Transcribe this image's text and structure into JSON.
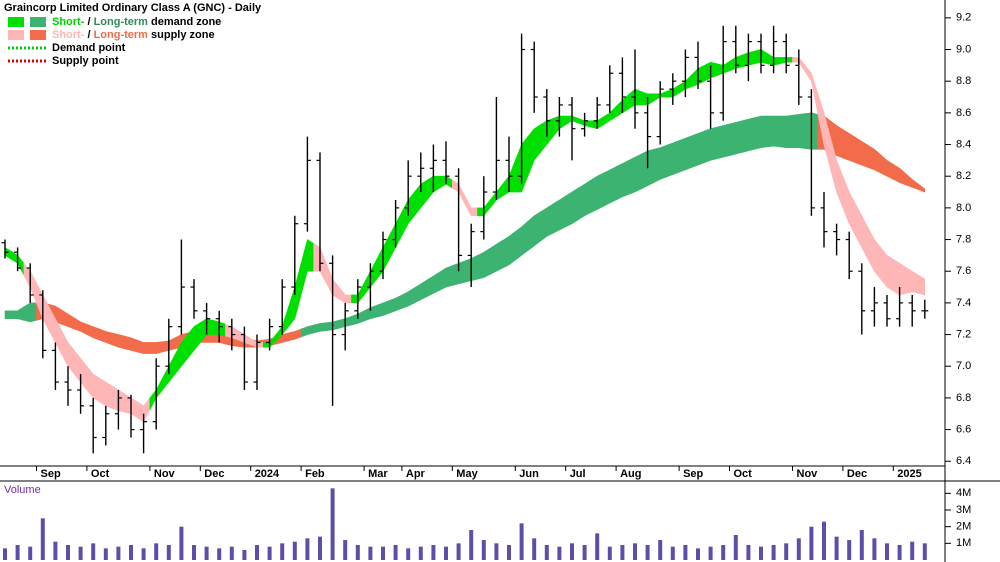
{
  "chart_data": [
    {
      "type": "ohlc",
      "title": "Graincorp Limited Ordinary Class A (GNC) - Daily",
      "categories": [
        null,
        null,
        null,
        "Sep",
        null,
        null,
        null,
        "Oct",
        null,
        null,
        null,
        null,
        "Nov",
        null,
        null,
        null,
        "Dec",
        null,
        null,
        null,
        "2024",
        null,
        null,
        null,
        "Feb",
        null,
        null,
        null,
        null,
        "Mar",
        null,
        null,
        "Apr",
        null,
        null,
        null,
        "May",
        null,
        null,
        null,
        null,
        "Jun",
        null,
        null,
        null,
        "Jul",
        null,
        null,
        null,
        "Aug",
        null,
        null,
        null,
        null,
        "Sep",
        null,
        null,
        null,
        "Oct",
        null,
        null,
        null,
        null,
        "Nov",
        null,
        null,
        null,
        "Dec",
        null,
        null,
        null,
        "2025",
        null,
        null
      ],
      "open": [
        7.78,
        7.72,
        7.62,
        7.45,
        7.1,
        6.9,
        6.85,
        6.75,
        6.55,
        6.7,
        6.8,
        6.6,
        6.65,
        7.0,
        7.25,
        7.5,
        7.35,
        7.3,
        7.25,
        7.2,
        6.9,
        7.15,
        7.25,
        7.5,
        7.9,
        8.3,
        7.65,
        7.2,
        7.35,
        7.5,
        7.6,
        7.8,
        8.0,
        8.2,
        8.25,
        8.3,
        8.2,
        7.7,
        7.85,
        8.1,
        8.3,
        8.2,
        9.0,
        8.7,
        8.55,
        8.65,
        8.5,
        8.55,
        8.65,
        8.85,
        8.7,
        8.6,
        8.45,
        8.75,
        8.8,
        8.95,
        8.8,
        8.6,
        9.05,
        8.9,
        9.05,
        8.9,
        9.05,
        8.9,
        8.7,
        8.0,
        7.85,
        7.8,
        7.6,
        7.35,
        7.4,
        7.3,
        7.4,
        7.35
      ],
      "high": [
        7.8,
        7.75,
        7.65,
        7.48,
        7.15,
        7.0,
        6.95,
        6.8,
        6.75,
        6.85,
        6.82,
        6.7,
        7.05,
        7.3,
        7.8,
        7.55,
        7.4,
        7.35,
        7.3,
        7.25,
        7.2,
        7.3,
        7.55,
        7.95,
        8.45,
        8.35,
        7.7,
        7.4,
        7.55,
        7.65,
        7.85,
        8.05,
        8.3,
        8.35,
        8.4,
        8.42,
        8.25,
        7.9,
        8.2,
        8.7,
        8.45,
        9.1,
        9.05,
        8.75,
        8.7,
        8.7,
        8.6,
        8.7,
        8.9,
        8.95,
        9.0,
        8.7,
        8.8,
        8.85,
        9.0,
        9.05,
        8.9,
        9.15,
        9.15,
        9.1,
        9.1,
        9.15,
        9.1,
        9.0,
        8.75,
        8.1,
        7.9,
        7.85,
        7.65,
        7.5,
        7.45,
        7.5,
        7.45,
        7.42
      ],
      "low": [
        7.68,
        7.6,
        7.4,
        7.05,
        6.85,
        6.75,
        6.7,
        6.45,
        6.5,
        6.6,
        6.55,
        6.45,
        6.6,
        6.95,
        7.2,
        7.3,
        7.2,
        7.15,
        7.1,
        6.85,
        6.85,
        7.1,
        7.2,
        7.45,
        7.85,
        7.6,
        6.75,
        7.1,
        7.3,
        7.35,
        7.55,
        7.75,
        7.95,
        8.1,
        8.1,
        8.15,
        7.6,
        7.5,
        7.8,
        8.05,
        8.1,
        8.15,
        8.6,
        8.45,
        8.45,
        8.3,
        8.45,
        8.5,
        8.6,
        8.6,
        8.5,
        8.25,
        8.4,
        8.65,
        8.7,
        8.75,
        8.5,
        8.55,
        8.85,
        8.8,
        8.85,
        8.85,
        8.85,
        8.65,
        7.95,
        7.75,
        7.7,
        7.55,
        7.2,
        7.25,
        7.25,
        7.25,
        7.25,
        7.3
      ],
      "close": [
        7.72,
        7.62,
        7.45,
        7.1,
        6.9,
        6.85,
        6.75,
        6.55,
        6.7,
        6.8,
        6.6,
        6.65,
        7.0,
        7.25,
        7.5,
        7.35,
        7.3,
        7.25,
        7.2,
        6.9,
        7.15,
        7.25,
        7.5,
        7.9,
        8.3,
        7.65,
        7.2,
        7.35,
        7.5,
        7.6,
        7.8,
        8.0,
        8.2,
        8.25,
        8.3,
        8.2,
        7.7,
        7.85,
        8.1,
        8.3,
        8.2,
        9.0,
        8.7,
        8.55,
        8.65,
        8.5,
        8.55,
        8.65,
        8.85,
        8.7,
        8.6,
        8.45,
        8.75,
        8.8,
        8.95,
        8.8,
        8.6,
        9.05,
        8.9,
        9.05,
        8.9,
        9.05,
        8.9,
        8.7,
        8.0,
        7.85,
        7.8,
        7.6,
        7.35,
        7.4,
        7.3,
        7.4,
        7.35,
        7.35
      ],
      "color": "#000000",
      "ylim": [
        6.37,
        9.3
      ],
      "yticks": [
        6.4,
        6.6,
        6.8,
        {
          "value": 7,
          "label": "7.0"
        },
        7.2,
        7.4,
        7.6,
        7.8,
        {
          "value": 8,
          "label": "8.0"
        },
        8.2,
        8.4,
        8.6,
        8.8,
        {
          "value": 9,
          "label": "9.0"
        },
        9.2
      ],
      "zones": [
        {
          "upper": [
            7.35,
            7.35,
            7.4,
            7.4,
            7.38,
            7.33,
            7.28,
            7.25,
            7.22,
            7.2,
            7.18,
            7.15,
            7.15,
            7.16,
            7.2,
            7.22,
            7.23,
            7.22,
            7.2,
            7.18,
            7.16,
            7.17,
            7.2,
            7.22,
            7.25,
            7.27,
            7.28,
            7.3,
            7.33,
            7.37,
            7.4,
            7.43,
            7.47,
            7.52,
            7.57,
            7.62,
            7.65,
            7.68,
            7.72,
            7.77,
            7.82,
            7.88,
            7.95,
            8.0,
            8.05,
            8.1,
            8.15,
            8.2,
            8.24,
            8.28,
            8.32,
            8.36,
            8.38,
            8.41,
            8.44,
            8.47,
            8.5,
            8.52,
            8.54,
            8.56,
            8.58,
            8.58,
            8.58,
            8.59,
            8.6,
            8.58,
            8.52,
            8.47,
            8.42,
            8.37,
            8.3,
            8.25,
            8.18,
            8.12
          ],
          "lower": [
            7.3,
            7.3,
            7.28,
            7.3,
            7.28,
            7.25,
            7.22,
            7.18,
            7.15,
            7.12,
            7.1,
            7.08,
            7.08,
            7.1,
            7.12,
            7.15,
            7.15,
            7.15,
            7.13,
            7.12,
            7.12,
            7.13,
            7.15,
            7.17,
            7.2,
            7.22,
            7.23,
            7.25,
            7.27,
            7.3,
            7.32,
            7.35,
            7.38,
            7.42,
            7.46,
            7.5,
            7.52,
            7.54,
            7.56,
            7.6,
            7.64,
            7.7,
            7.76,
            7.82,
            7.86,
            7.9,
            7.95,
            7.99,
            8.03,
            8.07,
            8.1,
            8.14,
            8.18,
            8.21,
            8.24,
            8.27,
            8.3,
            8.32,
            8.34,
            8.36,
            8.38,
            8.39,
            8.38,
            8.38,
            8.37,
            8.37,
            8.33,
            8.3,
            8.27,
            8.24,
            8.2,
            8.16,
            8.13,
            8.1
          ],
          "colors": [
            "#3cb371",
            "#3cb371",
            "#3cb371",
            "#f26b4a",
            "#f26b4a",
            "#f26b4a",
            "#f26b4a",
            "#f26b4a",
            "#f26b4a",
            "#f26b4a",
            "#f26b4a",
            "#f26b4a",
            "#f26b4a",
            "#f26b4a",
            "#f26b4a",
            "#f26b4a",
            "#f26b4a",
            "#f26b4a",
            "#f26b4a",
            "#f26b4a",
            "#f26b4a",
            "#f26b4a",
            "#f26b4a",
            "#f26b4a",
            "#3cb371",
            "#3cb371",
            "#3cb371",
            "#3cb371",
            "#3cb371",
            "#3cb371",
            "#3cb371",
            "#3cb371",
            "#3cb371",
            "#3cb371",
            "#3cb371",
            "#3cb371",
            "#3cb371",
            "#3cb371",
            "#3cb371",
            "#3cb371",
            "#3cb371",
            "#3cb371",
            "#3cb371",
            "#3cb371",
            "#3cb371",
            "#3cb371",
            "#3cb371",
            "#3cb371",
            "#3cb371",
            "#3cb371",
            "#3cb371",
            "#3cb371",
            "#3cb371",
            "#3cb371",
            "#3cb371",
            "#3cb371",
            "#3cb371",
            "#3cb371",
            "#3cb371",
            "#3cb371",
            "#3cb371",
            "#3cb371",
            "#3cb371",
            "#3cb371",
            "#3cb371",
            "#f26b4a",
            "#f26b4a",
            "#f26b4a",
            "#f26b4a",
            "#f26b4a",
            "#f26b4a",
            "#f26b4a",
            "#f26b4a",
            "#f26b4a"
          ]
        },
        {
          "upper": [
            7.75,
            7.7,
            7.6,
            7.45,
            7.3,
            7.15,
            7.05,
            6.95,
            6.9,
            6.85,
            6.8,
            6.75,
            6.85,
            7.0,
            7.15,
            7.25,
            7.3,
            7.28,
            7.25,
            7.2,
            7.15,
            7.15,
            7.25,
            7.5,
            7.8,
            7.75,
            7.55,
            7.45,
            7.45,
            7.6,
            7.75,
            7.9,
            8.05,
            8.15,
            8.2,
            8.2,
            8.15,
            8.0,
            8.0,
            8.1,
            8.2,
            8.4,
            8.5,
            8.55,
            8.58,
            8.58,
            8.55,
            8.55,
            8.6,
            8.68,
            8.75,
            8.72,
            8.72,
            8.75,
            8.8,
            8.88,
            8.92,
            8.9,
            8.95,
            8.98,
            9.0,
            8.95,
            8.95,
            8.95,
            8.85,
            8.6,
            8.3,
            8.1,
            7.95,
            7.8,
            7.7,
            7.65,
            7.6,
            7.55
          ],
          "lower": [
            7.7,
            7.65,
            7.5,
            7.3,
            7.15,
            7.0,
            6.9,
            6.8,
            6.75,
            6.72,
            6.7,
            6.65,
            6.8,
            6.9,
            7.0,
            7.1,
            7.2,
            7.2,
            7.18,
            7.15,
            7.12,
            7.12,
            7.2,
            7.3,
            7.6,
            7.6,
            7.45,
            7.4,
            7.4,
            7.5,
            7.6,
            7.75,
            7.9,
            8.0,
            8.1,
            8.15,
            8.1,
            7.95,
            7.95,
            8.05,
            8.1,
            8.1,
            8.3,
            8.4,
            8.5,
            8.55,
            8.52,
            8.5,
            8.55,
            8.6,
            8.65,
            8.65,
            8.7,
            8.7,
            8.75,
            8.78,
            8.82,
            8.85,
            8.88,
            8.9,
            8.92,
            8.9,
            8.92,
            8.92,
            8.8,
            8.4,
            8.1,
            7.9,
            7.75,
            7.6,
            7.5,
            7.45,
            7.47,
            7.45
          ],
          "colors": [
            "#00e000",
            "#00e000",
            "#ffb6b6",
            "#ffb6b6",
            "#ffb6b6",
            "#ffb6b6",
            "#ffb6b6",
            "#ffb6b6",
            "#ffb6b6",
            "#ffb6b6",
            "#ffb6b6",
            "#ffb6b6",
            "#00e000",
            "#00e000",
            "#00e000",
            "#00e000",
            "#00e000",
            "#00e000",
            "#ffb6b6",
            "#ffb6b6",
            "#ffb6b6",
            "#00e000",
            "#00e000",
            "#00e000",
            "#00e000",
            "#ffb6b6",
            "#ffb6b6",
            "#ffb6b6",
            "#00e000",
            "#00e000",
            "#00e000",
            "#00e000",
            "#00e000",
            "#00e000",
            "#00e000",
            "#00e000",
            "#ffb6b6",
            "#ffb6b6",
            "#00e000",
            "#00e000",
            "#00e000",
            "#00e000",
            "#00e000",
            "#00e000",
            "#00e000",
            "#00e000",
            "#00e000",
            "#00e000",
            "#00e000",
            "#00e000",
            "#00e000",
            "#00e000",
            "#00e000",
            "#00e000",
            "#00e000",
            "#00e000",
            "#00e000",
            "#00e000",
            "#00e000",
            "#00e000",
            "#00e000",
            "#00e000",
            "#00e000",
            "#ffb6b6",
            "#ffb6b6",
            "#ffb6b6",
            "#ffb6b6",
            "#ffb6b6",
            "#ffb6b6",
            "#ffb6b6",
            "#ffb6b6",
            "#ffb6b6",
            "#ffb6b6",
            "#ffb6b6"
          ]
        }
      ],
      "legend": [
        {
          "label_parts": [
            "Short-",
            " / ",
            "Long-term",
            " demand zone"
          ],
          "part_colors": [
            "#00d000",
            "#000000",
            "#2e8b57",
            "#000000"
          ],
          "swatches": [
            "#00e000",
            "#3cb371"
          ],
          "dotted": false
        },
        {
          "label_parts": [
            "Short-",
            " / ",
            "Long-term",
            " supply zone"
          ],
          "part_colors": [
            "#ffb6b6",
            "#000000",
            "#f26b4a",
            "#000000"
          ],
          "swatches": [
            "#ffb6b6",
            "#f26b4a"
          ],
          "dotted": false
        },
        {
          "label_parts": [
            "Demand point"
          ],
          "part_colors": [
            "#000000"
          ],
          "swatches": [
            "#00d000"
          ],
          "dotted": true
        },
        {
          "label_parts": [
            "Supply point"
          ],
          "part_colors": [
            "#000000"
          ],
          "swatches": [
            "#e00000"
          ],
          "dotted": true
        }
      ]
    },
    {
      "type": "bar",
      "title": "Volume",
      "title_color": "#7030a0",
      "values": [
        700000,
        900000,
        800000,
        2500000,
        1100000,
        900000,
        800000,
        1000000,
        700000,
        800000,
        900000,
        700000,
        1000000,
        900000,
        2000000,
        900000,
        800000,
        700000,
        800000,
        600000,
        900000,
        800000,
        1000000,
        1100000,
        1300000,
        1400000,
        4300000,
        1200000,
        900000,
        800000,
        800000,
        900000,
        700000,
        800000,
        900000,
        800000,
        1000000,
        1800000,
        1200000,
        1000000,
        900000,
        2200000,
        1300000,
        900000,
        800000,
        1000000,
        900000,
        1600000,
        800000,
        900000,
        1000000,
        900000,
        1200000,
        800000,
        900000,
        700000,
        800000,
        900000,
        1500000,
        900000,
        800000,
        900000,
        1000000,
        1300000,
        2000000,
        2300000,
        1400000,
        1200000,
        1800000,
        1300000,
        1000000,
        900000,
        1100000,
        1000000
      ],
      "color": "#5b4fa8",
      "ylim": [
        0,
        4800000
      ],
      "yticks": [
        {
          "value": 1000000,
          "label": "1M"
        },
        {
          "value": 2000000,
          "label": "2M"
        },
        {
          "value": 3000000,
          "label": "3M"
        },
        {
          "value": 4000000,
          "label": "4M"
        }
      ]
    }
  ]
}
